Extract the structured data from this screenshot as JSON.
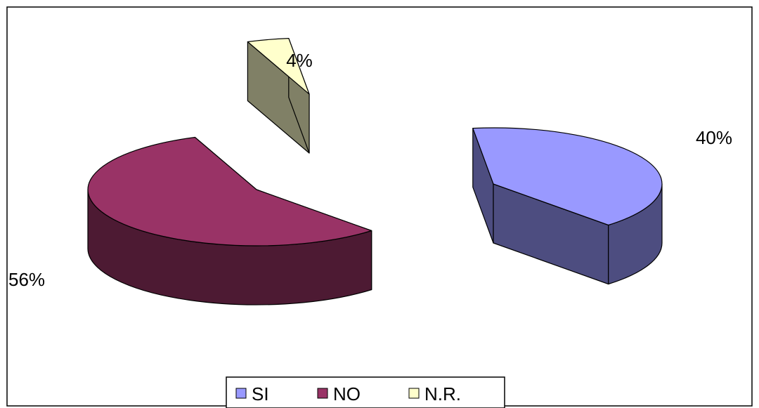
{
  "chart_data": {
    "type": "pie",
    "style": "3d-exploded",
    "categories": [
      "SI",
      "NO",
      "N.R."
    ],
    "values": [
      40,
      56,
      4
    ],
    "value_labels": [
      "40%",
      "56%",
      "4%"
    ],
    "colors": [
      "#9999ff",
      "#993366",
      "#ffffcc"
    ],
    "side_colors": [
      "#4d4d80",
      "#4d1a33",
      "#808066"
    ],
    "legend_position": "bottom"
  }
}
